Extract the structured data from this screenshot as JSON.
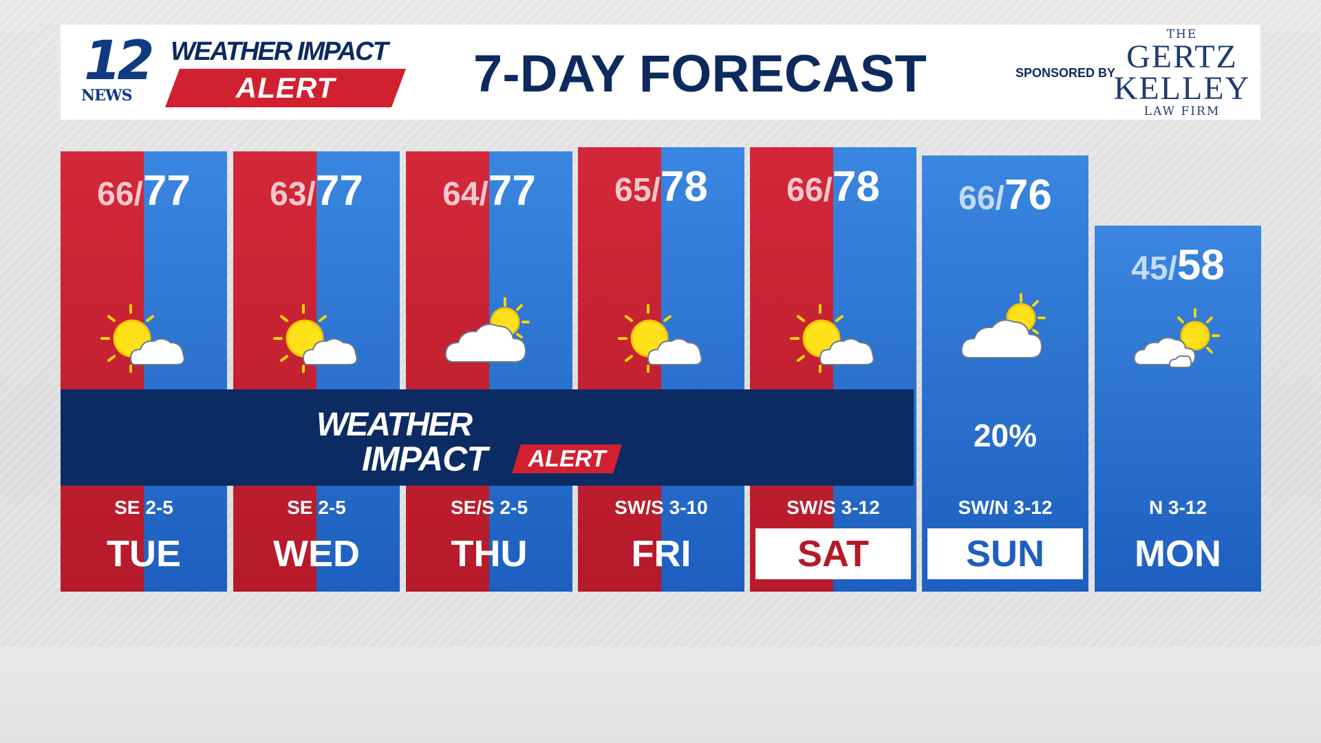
{
  "header": {
    "station_number": "12",
    "station_name": "NEWS",
    "brand_line1": "WEATHER IMPACT",
    "brand_line2": "ALERT",
    "title": "7-DAY FORECAST",
    "sponsored_by": "SPONSORED BY",
    "sponsor": {
      "the": "THE",
      "name1": "GERTZ",
      "name2": "KELLEY",
      "sub": "LAW FIRM"
    }
  },
  "alert_banner": {
    "line1": "WEATHER",
    "line2": "IMPACT",
    "badge": "ALERT"
  },
  "colors": {
    "alert_red": "#d1202f",
    "hot_red": "#c1202f",
    "cool_blue": "#2a72d0",
    "navy": "#0c2b63"
  },
  "days": [
    {
      "day": "TUE",
      "low": "66",
      "high": "77",
      "wind": "SE 2-5",
      "condition": "partly-sunny-icon",
      "precip": "",
      "alert": true
    },
    {
      "day": "WED",
      "low": "63",
      "high": "77",
      "wind": "SE 2-5",
      "condition": "partly-sunny-icon",
      "precip": "",
      "alert": true
    },
    {
      "day": "THU",
      "low": "64",
      "high": "77",
      "wind": "SE/S 2-5",
      "condition": "mostly-cloudy-icon",
      "precip": "",
      "alert": true
    },
    {
      "day": "FRI",
      "low": "65",
      "high": "78",
      "wind": "SW/S 3-10",
      "condition": "partly-sunny-icon",
      "precip": "",
      "alert": true
    },
    {
      "day": "SAT",
      "low": "66",
      "high": "78",
      "wind": "SW/S 3-12",
      "condition": "partly-sunny-icon",
      "precip": "",
      "alert": true
    },
    {
      "day": "SUN",
      "low": "66",
      "high": "76",
      "wind": "SW/N 3-12",
      "condition": "mostly-cloudy-icon",
      "precip": "20%",
      "alert": false
    },
    {
      "day": "MON",
      "low": "45",
      "high": "58",
      "wind": "N 3-12",
      "condition": "partly-cloudy-icon",
      "precip": "",
      "alert": false
    }
  ]
}
